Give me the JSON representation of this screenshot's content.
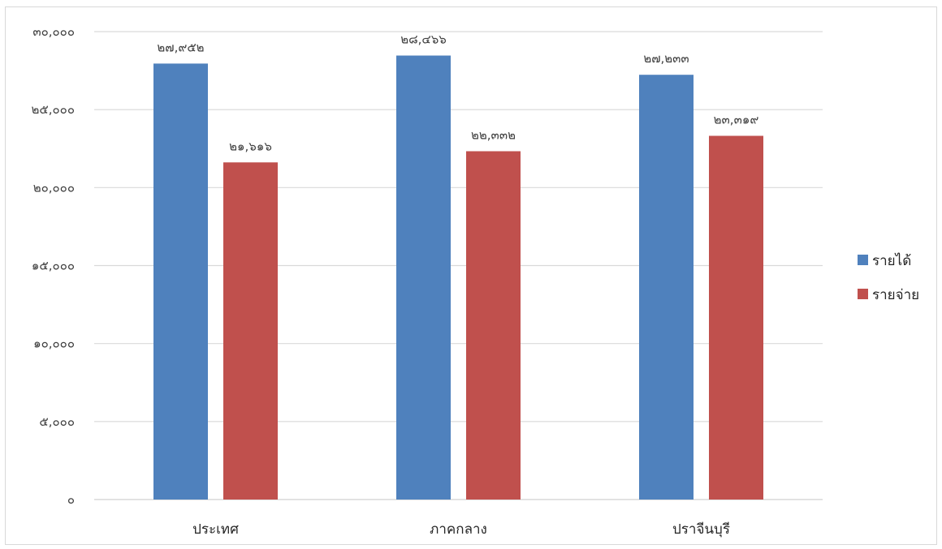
{
  "chart_data": {
    "type": "bar",
    "categories": [
      "ประเทศ",
      "ภาคกลาง",
      "ปราจีนบุรี"
    ],
    "series": [
      {
        "name": "รายได้",
        "color": "#4f81bd",
        "values": [
          27952,
          28466,
          27233
        ],
        "labels": [
          "๒๗,๙๕๒",
          "๒๘,๔๖๖",
          "๒๗,๒๓๓"
        ]
      },
      {
        "name": "รายจ่าย",
        "color": "#c0504d",
        "values": [
          21616,
          22332,
          23319
        ],
        "labels": [
          "๒๑,๖๑๖",
          "๒๒,๓๓๒",
          "๒๓,๓๑๙"
        ]
      }
    ],
    "ylim": [
      0,
      30000
    ],
    "yticks": [
      0,
      5000,
      10000,
      15000,
      20000,
      25000,
      30000
    ],
    "ytick_labels": [
      "๐",
      "๕,๐๐๐",
      "๑๐,๐๐๐",
      "๑๕,๐๐๐",
      "๒๐,๐๐๐",
      "๒๕,๐๐๐",
      "๓๐,๐๐๐"
    ],
    "grid": true,
    "legend_position": "right",
    "title": "",
    "xlabel": "",
    "ylabel": ""
  }
}
